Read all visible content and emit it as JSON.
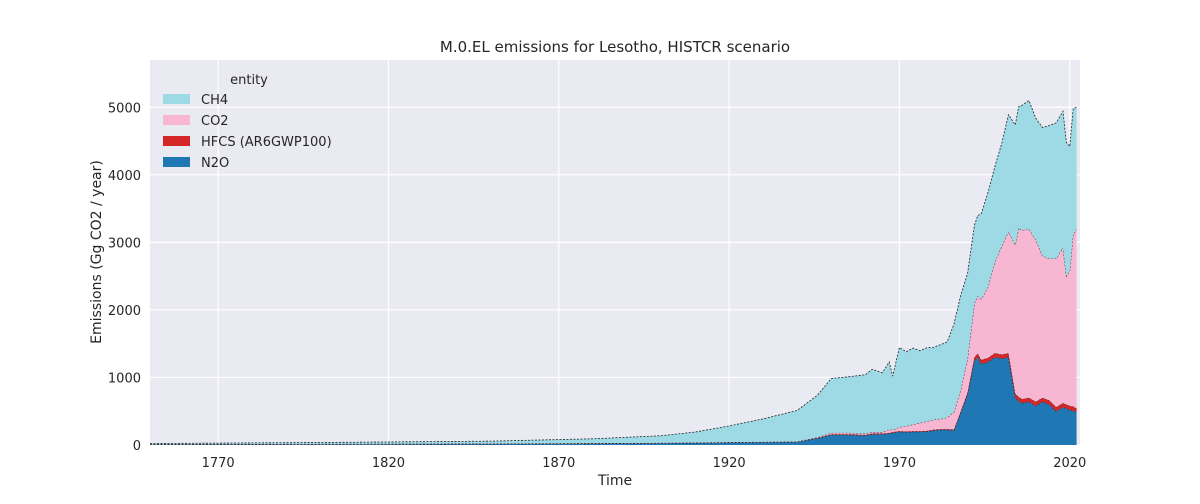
{
  "chart_data": {
    "type": "area",
    "stacked": true,
    "title": "M.0.EL emissions for Lesotho, HISTCR scenario",
    "xlabel": "Time",
    "ylabel": "Emissions (Gg CO2 / year)",
    "xlim": [
      1750,
      2023
    ],
    "ylim": [
      0,
      5700
    ],
    "xticks": [
      1770,
      1820,
      1870,
      1920,
      1970,
      2020
    ],
    "yticks": [
      0,
      1000,
      2000,
      3000,
      4000,
      5000
    ],
    "grid": true,
    "legend": {
      "title": "entity",
      "placement": "top-left",
      "entries": [
        "CH4",
        "CO2",
        "HFCS (AR6GWP100)",
        "N2O"
      ]
    },
    "x": [
      1750,
      1800,
      1850,
      1880,
      1900,
      1910,
      1920,
      1930,
      1940,
      1946,
      1950,
      1955,
      1960,
      1962,
      1965,
      1967,
      1968,
      1970,
      1972,
      1974,
      1976,
      1978,
      1980,
      1982,
      1984,
      1986,
      1988,
      1990,
      1992,
      1993,
      1994,
      1996,
      1998,
      2000,
      2002,
      2004,
      2005,
      2006,
      2008,
      2010,
      2012,
      2014,
      2016,
      2018,
      2019,
      2020,
      2021,
      2022
    ],
    "series": [
      {
        "name": "N2O",
        "color": "#1f77b4",
        "values": [
          5,
          10,
          15,
          20,
          25,
          30,
          35,
          40,
          45,
          100,
          150,
          150,
          140,
          160,
          160,
          170,
          180,
          195,
          190,
          195,
          195,
          200,
          215,
          225,
          225,
          215,
          480,
          750,
          1250,
          1300,
          1200,
          1230,
          1300,
          1280,
          1300,
          700,
          650,
          620,
          640,
          580,
          640,
          600,
          500,
          560,
          540,
          520,
          510,
          480
        ]
      },
      {
        "name": "HFCS (AR6GWP100)",
        "color": "#d62728",
        "values": [
          2,
          2,
          2,
          2,
          2,
          2,
          2,
          2,
          2,
          5,
          10,
          10,
          10,
          10,
          10,
          10,
          10,
          10,
          10,
          10,
          10,
          10,
          10,
          10,
          10,
          15,
          20,
          30,
          50,
          55,
          60,
          60,
          60,
          60,
          60,
          60,
          60,
          60,
          60,
          60,
          60,
          60,
          60,
          60,
          60,
          60,
          60,
          60
        ]
      },
      {
        "name": "CO2",
        "color": "#f7b6d2",
        "values": [
          5,
          5,
          5,
          5,
          5,
          5,
          5,
          5,
          5,
          10,
          20,
          20,
          20,
          20,
          20,
          50,
          30,
          60,
          80,
          100,
          120,
          140,
          150,
          150,
          170,
          260,
          320,
          500,
          800,
          850,
          900,
          1050,
          1350,
          1600,
          1800,
          2200,
          2500,
          2500,
          2500,
          2400,
          2100,
          2100,
          2200,
          2300,
          1900,
          2000,
          2550,
          2650
        ]
      },
      {
        "name": "CH4",
        "color": "#9edae5",
        "values": [
          10,
          20,
          35,
          65,
          105,
          155,
          240,
          340,
          460,
          625,
          805,
          830,
          870,
          930,
          880,
          1000,
          800,
          1180,
          1100,
          1130,
          1070,
          1090,
          1070,
          1100,
          1120,
          1300,
          1400,
          1260,
          1150,
          1195,
          1260,
          1400,
          1410,
          1520,
          1730,
          1780,
          1800,
          1850,
          1900,
          1800,
          1900,
          1970,
          2010,
          2020,
          1980,
          1840,
          1860,
          1810
        ]
      }
    ]
  }
}
